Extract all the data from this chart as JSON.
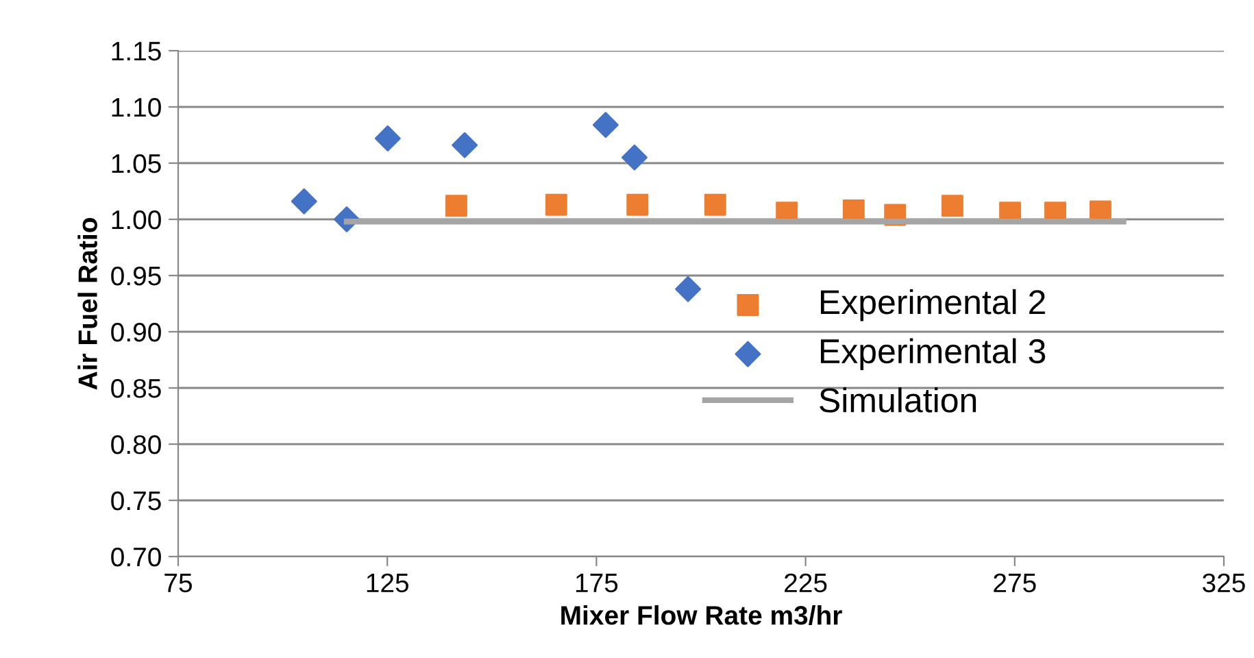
{
  "chart_data": {
    "type": "scatter",
    "xlabel": "Mixer Flow Rate m3/hr",
    "ylabel": "Air Fuel Ratio",
    "xlim": [
      75,
      325
    ],
    "xticks": [
      75,
      125,
      175,
      225,
      275,
      325
    ],
    "ylim": [
      0.7,
      1.15
    ],
    "yticks": [
      {
        "value": 0.7,
        "label": "0.70"
      },
      {
        "value": 0.75,
        "label": "0.75"
      },
      {
        "value": 0.8,
        "label": "0.80"
      },
      {
        "value": 0.85,
        "label": "0.85"
      },
      {
        "value": 0.9,
        "label": "0.90"
      },
      {
        "value": 0.95,
        "label": "0.95"
      },
      {
        "value": 1.0,
        "label": "1.00"
      },
      {
        "value": 1.05,
        "label": "1.05"
      },
      {
        "value": 1.1,
        "label": "1.10"
      },
      {
        "value": 1.15,
        "label": "1.15"
      }
    ],
    "grid": "y",
    "legend": "right",
    "series": [
      {
        "name": "Experimental 2",
        "color": "#ed7d31",
        "marker": "square",
        "x": [
          141.5,
          165.4,
          184.8,
          203.4,
          220.5,
          236.5,
          246.4,
          260.1,
          273.9,
          284.7,
          295.5
        ],
        "values": [
          1.012,
          1.013,
          1.013,
          1.013,
          1.006,
          1.008,
          1.004,
          1.012,
          1.006,
          1.006,
          1.007
        ]
      },
      {
        "name": "Experimental 3",
        "color": "#4472c4",
        "marker": "diamond",
        "x": [
          105.1,
          115.3,
          125.1,
          143.5,
          177.2,
          184.1,
          196.9
        ],
        "values": [
          1.016,
          1.0,
          1.072,
          1.066,
          1.084,
          1.055,
          0.938
        ]
      },
      {
        "name": "Simulation",
        "color": "#a5a5a5",
        "type": "line",
        "marker": "none",
        "x": [
          115.3,
          301
        ],
        "values": [
          0.998,
          0.998
        ]
      }
    ]
  }
}
